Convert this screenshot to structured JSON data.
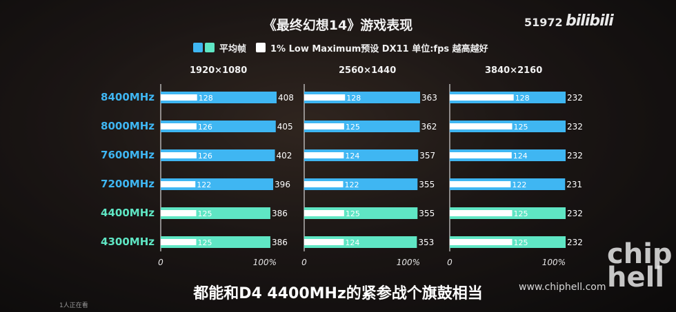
{
  "header": {
    "title": "《最终幻想14》游戏表现",
    "view_count": "51972",
    "site_logo": "bilibili"
  },
  "legend": {
    "avg_label": "平均帧",
    "low_label": "1% Low Maximum预设 DX11 单位:fps 越高越好"
  },
  "colors": {
    "ddr5_bar": "#3fb6f2",
    "ddr4_bar": "#5fe6c4",
    "low_bar": "#ffffff",
    "ddr5_label": "#3fb6f2",
    "ddr4_label": "#5fe6c4"
  },
  "chart_data": {
    "type": "bar",
    "title": "《最终幻想14》游戏表现",
    "orientation": "horizontal",
    "categories": [
      "8400MHz",
      "8000MHz",
      "7600MHz",
      "7200MHz",
      "4400MHz",
      "4300MHz"
    ],
    "category_groups": [
      "ddr5",
      "ddr5",
      "ddr5",
      "ddr5",
      "ddr4",
      "ddr4"
    ],
    "axis_min_label": "0",
    "axis_max_label": "100%",
    "panels": [
      {
        "name": "1920×1080",
        "avg": [
          408,
          405,
          402,
          396,
          386,
          386
        ],
        "low": [
          128,
          126,
          126,
          122,
          125,
          125
        ]
      },
      {
        "name": "2560×1440",
        "avg": [
          363,
          362,
          357,
          355,
          355,
          353
        ],
        "low": [
          128,
          125,
          124,
          122,
          125,
          124
        ]
      },
      {
        "name": "3840×2160",
        "avg": [
          232,
          232,
          232,
          231,
          232,
          232
        ],
        "low": [
          128,
          125,
          124,
          122,
          125,
          125
        ]
      }
    ],
    "series": [
      {
        "name": "平均帧"
      },
      {
        "name": "1% Low"
      }
    ]
  },
  "subtitle": "都能和D4 4400MHz的紧参战个旗鼓相当",
  "watermark": {
    "url": "www.chiphell.com",
    "logo": "chip hell"
  },
  "viewers": "1人正在看"
}
